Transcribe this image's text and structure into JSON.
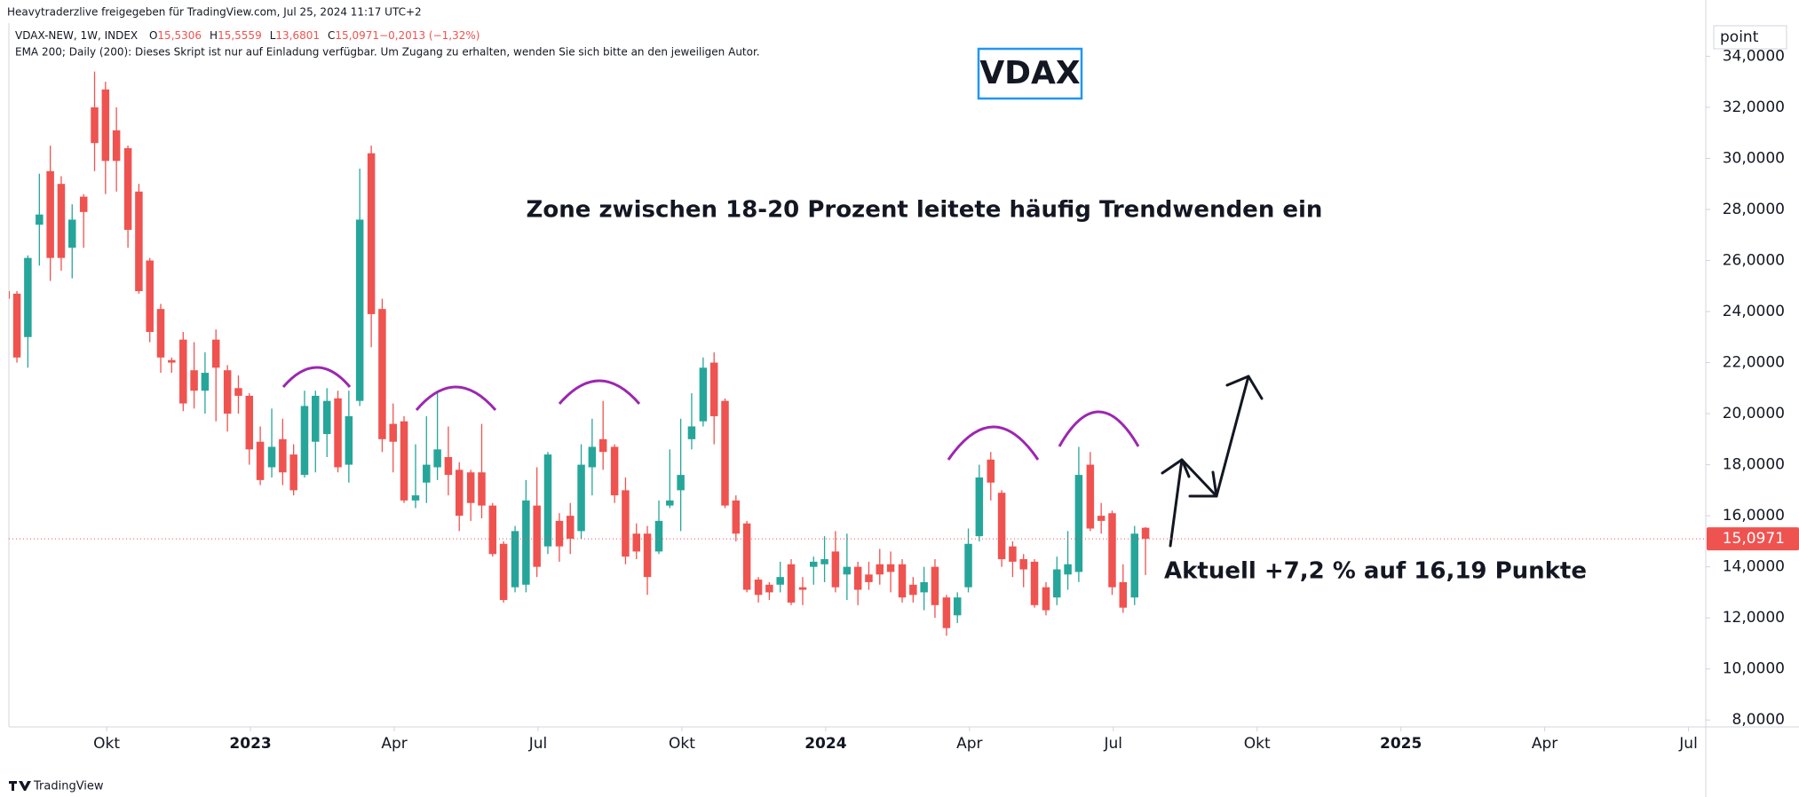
{
  "header": {
    "share_line": "Heavytraderzlive freigegeben für TradingView.com, Jul 25, 2024 11:17 UTC+2"
  },
  "footer": {
    "brand": "TradingView"
  },
  "chart_data": {
    "type": "candlestick",
    "title": "VDAX",
    "legend": {
      "symbol": "VDAX-NEW, 1W, INDEX",
      "ohlc": [
        "O",
        "15,5306",
        "H",
        "15,5559",
        "L",
        "13,6801",
        "C",
        "15,0971",
        "−0,2013 (−1,32%)"
      ],
      "indicator": "EMA 200; Daily (200): Dieses Skript ist nur auf Einladung verfügbar. Um Zugang zu erhalten, wenden Sie sich bitte an den jeweiligen Autor."
    },
    "annotations": [
      "Zone zwischen 18-20 Prozent leitete häufig Trendwenden ein",
      "Aktuell +7,2 % auf 16,19 Punkte"
    ],
    "y_unit": "point",
    "up_color": "#26a69a",
    "down_color": "#ef5350",
    "grid": false,
    "x": [
      2022.575,
      2022.594,
      2022.613,
      2022.633,
      2022.652,
      2022.671,
      2022.69,
      2022.71,
      2022.729,
      2022.748,
      2022.767,
      2022.787,
      2022.806,
      2022.825,
      2022.844,
      2022.863,
      2022.883,
      2022.902,
      2022.921,
      2022.94,
      2022.96,
      2022.979,
      2022.998,
      2023.017,
      2023.037,
      2023.056,
      2023.075,
      2023.094,
      2023.113,
      2023.133,
      2023.152,
      2023.171,
      2023.19,
      2023.21,
      2023.229,
      2023.248,
      2023.267,
      2023.287,
      2023.306,
      2023.325,
      2023.344,
      2023.363,
      2023.383,
      2023.402,
      2023.421,
      2023.44,
      2023.46,
      2023.479,
      2023.498,
      2023.517,
      2023.537,
      2023.556,
      2023.575,
      2023.594,
      2023.613,
      2023.633,
      2023.652,
      2023.671,
      2023.69,
      2023.71,
      2023.729,
      2023.748,
      2023.767,
      2023.787,
      2023.806,
      2023.825,
      2023.844,
      2023.863,
      2023.883,
      2023.902,
      2023.921,
      2023.94,
      2023.96,
      2023.979,
      2023.998,
      2024.017,
      2024.037,
      2024.056,
      2024.075,
      2024.094,
      2024.113,
      2024.133,
      2024.152,
      2024.171,
      2024.19,
      2024.21,
      2024.229,
      2024.248,
      2024.267,
      2024.287,
      2024.306,
      2024.325,
      2024.344,
      2024.363,
      2024.383,
      2024.402,
      2024.421,
      2024.44,
      2024.46,
      2024.479,
      2024.498,
      2024.517,
      2024.537,
      2024.556
    ],
    "open": [
      24.8,
      24.7,
      23.0,
      27.4,
      29.5,
      29.0,
      26.5,
      28.5,
      32.0,
      32.7,
      31.1,
      30.4,
      28.7,
      26.0,
      24.1,
      22.1,
      22.9,
      21.7,
      20.9,
      22.9,
      21.7,
      21.0,
      20.7,
      18.9,
      17.9,
      19.0,
      18.4,
      17.6,
      18.9,
      19.2,
      20.6,
      18.0,
      20.5,
      30.2,
      24.1,
      19.6,
      19.7,
      16.6,
      17.3,
      17.9,
      18.3,
      17.8,
      17.7,
      17.7,
      16.4,
      14.9,
      13.2,
      13.3,
      16.4,
      14.8,
      15.8,
      16.0,
      15.4,
      17.9,
      19.0,
      18.7,
      17.0,
      15.3,
      15.3,
      14.6,
      16.4,
      17.0,
      19.0,
      19.7,
      22.0,
      20.5,
      16.6,
      15.7,
      13.5,
      13.3,
      13.3,
      14.1,
      13.2,
      14.0,
      14.1,
      14.6,
      13.7,
      14.0,
      13.7,
      14.1,
      14.1,
      14.1,
      13.3,
      13.0,
      14.0,
      12.8,
      12.1,
      13.2,
      15.2,
      18.2,
      16.9,
      14.8,
      14.3,
      14.2,
      13.2,
      12.8,
      13.7,
      13.8,
      18.0,
      16.0,
      16.1,
      13.4,
      12.8,
      15.5306
    ],
    "high": [
      24.9,
      24.8,
      26.2,
      29.4,
      30.5,
      29.3,
      28.2,
      28.6,
      33.4,
      33.0,
      32.0,
      30.5,
      29.0,
      26.1,
      24.3,
      22.2,
      23.2,
      22.8,
      22.4,
      23.3,
      21.9,
      21.5,
      20.8,
      19.5,
      20.2,
      19.8,
      18.8,
      20.9,
      20.9,
      21.0,
      20.9,
      20.9,
      29.6,
      30.5,
      24.5,
      20.4,
      19.9,
      18.8,
      19.9,
      20.9,
      19.5,
      18.1,
      17.8,
      19.6,
      16.5,
      15.0,
      15.6,
      17.4,
      17.9,
      18.5,
      16.1,
      16.5,
      18.8,
      19.8,
      20.5,
      18.8,
      17.5,
      15.7,
      15.6,
      16.6,
      18.6,
      19.8,
      20.8,
      22.2,
      22.4,
      20.6,
      16.8,
      15.8,
      13.6,
      13.4,
      14.2,
      14.3,
      13.6,
      14.4,
      15.2,
      15.4,
      15.3,
      14.2,
      14.2,
      14.7,
      14.6,
      14.3,
      13.6,
      14.0,
      14.3,
      12.9,
      13.0,
      15.5,
      18.0,
      18.5,
      17.0,
      15.0,
      14.5,
      14.3,
      13.4,
      14.4,
      15.4,
      18.7,
      18.5,
      16.5,
      16.2,
      14.1,
      15.6,
      15.5559
    ],
    "low": [
      24.4,
      22.0,
      21.8,
      25.8,
      25.2,
      25.6,
      25.3,
      26.5,
      29.5,
      28.6,
      28.7,
      26.5,
      24.7,
      22.8,
      21.6,
      21.6,
      20.1,
      20.2,
      20.0,
      19.7,
      19.3,
      20.0,
      18.0,
      17.2,
      17.5,
      17.2,
      16.8,
      17.5,
      17.7,
      18.3,
      17.7,
      17.3,
      20.3,
      22.6,
      18.5,
      17.7,
      16.5,
      16.3,
      16.5,
      17.4,
      16.8,
      15.4,
      15.8,
      15.9,
      14.4,
      12.6,
      13.0,
      13.0,
      13.6,
      14.5,
      14.2,
      14.5,
      15.1,
      16.8,
      17.8,
      16.5,
      14.1,
      14.3,
      12.9,
      14.5,
      16.3,
      15.4,
      18.6,
      19.5,
      18.8,
      16.3,
      15.0,
      13.0,
      12.6,
      12.7,
      13.0,
      12.5,
      12.5,
      13.3,
      13.4,
      13.0,
      12.7,
      12.5,
      13.1,
      13.3,
      13.0,
      12.6,
      12.6,
      12.3,
      12.0,
      11.3,
      11.8,
      13.0,
      15.0,
      16.6,
      14.0,
      13.6,
      13.2,
      12.4,
      12.1,
      12.5,
      13.1,
      13.4,
      15.4,
      15.3,
      12.9,
      12.2,
      12.5,
      13.6801
    ],
    "close": [
      24.5,
      22.2,
      26.1,
      27.8,
      26.1,
      26.1,
      27.6,
      27.9,
      30.6,
      29.9,
      29.9,
      27.2,
      24.8,
      23.2,
      22.2,
      22.0,
      20.4,
      20.9,
      21.6,
      21.8,
      20.0,
      20.7,
      18.6,
      17.4,
      18.7,
      17.7,
      17.0,
      20.3,
      20.7,
      20.5,
      17.9,
      19.9,
      27.6,
      23.9,
      19.0,
      18.9,
      16.6,
      16.8,
      18.0,
      18.6,
      17.6,
      16.0,
      16.5,
      16.4,
      14.5,
      12.7,
      15.4,
      16.6,
      14.0,
      18.4,
      14.8,
      15.1,
      18.0,
      18.7,
      18.5,
      16.8,
      14.4,
      14.6,
      13.6,
      15.8,
      16.6,
      17.6,
      19.5,
      21.8,
      19.9,
      16.4,
      15.3,
      13.1,
      12.9,
      13.0,
      13.6,
      12.6,
      13.1,
      14.2,
      14.3,
      13.2,
      14.0,
      13.1,
      13.4,
      13.7,
      13.8,
      12.8,
      12.9,
      13.4,
      12.5,
      11.6,
      12.8,
      14.9,
      17.5,
      17.3,
      14.3,
      14.2,
      13.9,
      12.5,
      12.3,
      13.9,
      14.1,
      17.6,
      15.5,
      15.8,
      13.2,
      12.4,
      15.3,
      15.0971
    ],
    "last_price": {
      "value": 15.0971,
      "label": "15,0971"
    },
    "xlim": [
      2022.58,
      2025.53
    ],
    "xticks": [
      {
        "value": 2022.75,
        "label": "Okt"
      },
      2023,
      {
        "value": 2023.25,
        "label": "Apr"
      },
      {
        "value": 2023.5,
        "label": "Jul"
      },
      {
        "value": 2023.75,
        "label": "Okt"
      },
      2024,
      {
        "value": 2024.25,
        "label": "Apr"
      },
      {
        "value": 2024.5,
        "label": "Jul"
      },
      {
        "value": 2024.75,
        "label": "Okt"
      },
      2025,
      {
        "value": 2025.25,
        "label": "Apr"
      },
      {
        "value": 2025.5,
        "label": "Jul"
      }
    ],
    "ylim": [
      7.73,
      35.3
    ],
    "yticks": [
      {
        "value": 8,
        "label": "8,0000"
      },
      {
        "value": 10,
        "label": "10,0000"
      },
      {
        "value": 12,
        "label": "12,0000"
      },
      {
        "value": 14,
        "label": "14,0000"
      },
      {
        "value": 16,
        "label": "16,0000"
      },
      {
        "value": 18,
        "label": "18,0000"
      },
      {
        "value": 20,
        "label": "20,0000"
      },
      {
        "value": 22,
        "label": "22,0000"
      },
      {
        "value": 24,
        "label": "24,0000"
      },
      {
        "value": 26,
        "label": "26,0000"
      },
      {
        "value": 28,
        "label": "28,0000"
      },
      {
        "value": 30,
        "label": "30,0000"
      },
      {
        "value": 32,
        "label": "32,0000"
      },
      {
        "value": 34,
        "label": "34,0000"
      }
    ]
  }
}
